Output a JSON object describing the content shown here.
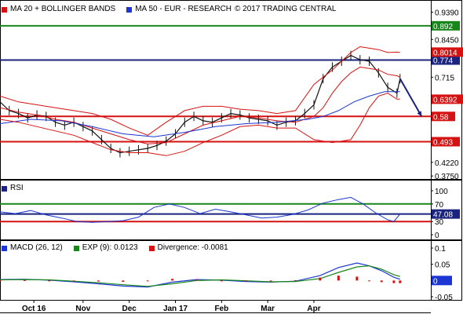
{
  "header": {
    "ma20_label": "MA 20 + BOLLINGER BANDS",
    "ma50_label": "MA 50 - EUR - RESEARCH",
    "copyright": "© 2017 TRADING CENTRAL"
  },
  "rsi_panel": {
    "label": "RSI"
  },
  "macd_panel": {
    "macd_label": "MACD (26, 12)",
    "exp_label": "EXP (9): 0.0123",
    "div_label": "Divergence: -0.0081"
  },
  "colors": {
    "price": "#111111",
    "ma20": "#d61111",
    "ma50": "#1b36d2",
    "bands": "#d61111",
    "level_green": "#18861a",
    "level_blue": "#1a237e",
    "level_red": "#d61111",
    "rsi": "#1b36d2",
    "macd": "#1b36d2",
    "exp": "#18861a",
    "divergence": "#d61111",
    "arrow": "#1a237e"
  },
  "chart_data": [
    {
      "id": "price",
      "type": "line",
      "title": "MA 20 + BOLLINGER BANDS / MA 50 - EUR - RESEARCH",
      "x_tick_labels": [
        "Oct 16",
        "Nov",
        "Dec",
        "Jan 17",
        "Feb",
        "Mar",
        "Apr"
      ],
      "y_ticks": [
        0.939,
        0.845,
        0.715,
        0.422,
        0.375
      ],
      "y_tick_labels": [
        "0.9390",
        "0.8450",
        "0.715",
        "0.4220",
        "0.3750"
      ],
      "ylim": [
        0.37,
        0.97
      ],
      "grid": false,
      "levels": [
        {
          "value": 0.892,
          "label": "0.892",
          "color": "#18861a"
        },
        {
          "value": 0.774,
          "label": "0.774",
          "color": "#1a237e"
        },
        {
          "value": 0.58,
          "label": "0.58",
          "color": "#d61111"
        },
        {
          "value": 0.493,
          "label": "0.493",
          "color": "#d61111"
        }
      ],
      "markers": [
        {
          "value": 0.8014,
          "label": "0.8014",
          "color": "#d61111"
        },
        {
          "value": 0.6392,
          "label": "0.6392",
          "color": "#d61111"
        }
      ],
      "projection": {
        "from_x": 130,
        "from_y": 0.71,
        "to_x": 137,
        "to_y": 0.58
      },
      "series": [
        {
          "name": "Price",
          "x": [
            0,
            3,
            6,
            9,
            12,
            15,
            18,
            21,
            24,
            27,
            30,
            33,
            36,
            39,
            42,
            45,
            48,
            51,
            54,
            57,
            60,
            63,
            66,
            69,
            72,
            75,
            78,
            81,
            84,
            87,
            90,
            93,
            96,
            99,
            102,
            105,
            108,
            111,
            114,
            117,
            120,
            123,
            126,
            129,
            130
          ],
          "values": [
            0.63,
            0.6,
            0.59,
            0.575,
            0.585,
            0.58,
            0.56,
            0.55,
            0.56,
            0.545,
            0.53,
            0.5,
            0.47,
            0.455,
            0.46,
            0.465,
            0.47,
            0.48,
            0.495,
            0.52,
            0.56,
            0.58,
            0.565,
            0.56,
            0.575,
            0.59,
            0.585,
            0.575,
            0.57,
            0.565,
            0.55,
            0.56,
            0.565,
            0.59,
            0.62,
            0.71,
            0.75,
            0.77,
            0.79,
            0.775,
            0.77,
            0.73,
            0.68,
            0.66,
            0.71
          ]
        },
        {
          "name": "MA 20",
          "x": [
            0,
            6,
            12,
            18,
            24,
            30,
            36,
            42,
            48,
            54,
            60,
            66,
            72,
            78,
            84,
            90,
            96,
            102,
            105,
            108,
            111,
            114,
            117,
            120,
            123,
            126,
            129,
            130
          ],
          "values": [
            0.61,
            0.595,
            0.585,
            0.57,
            0.56,
            0.54,
            0.52,
            0.5,
            0.485,
            0.49,
            0.52,
            0.55,
            0.565,
            0.58,
            0.575,
            0.565,
            0.56,
            0.58,
            0.61,
            0.66,
            0.7,
            0.73,
            0.75,
            0.745,
            0.74,
            0.725,
            0.72,
            0.715
          ]
        },
        {
          "name": "MA 50",
          "x": [
            0,
            10,
            20,
            30,
            40,
            50,
            60,
            70,
            80,
            90,
            100,
            105,
            110,
            115,
            120,
            125,
            130
          ],
          "values": [
            0.555,
            0.57,
            0.565,
            0.545,
            0.52,
            0.51,
            0.525,
            0.545,
            0.555,
            0.56,
            0.57,
            0.58,
            0.6,
            0.63,
            0.65,
            0.665,
            0.665
          ]
        },
        {
          "name": "Bollinger Upper",
          "x": [
            0,
            6,
            12,
            18,
            24,
            30,
            36,
            42,
            48,
            54,
            60,
            66,
            72,
            78,
            84,
            90,
            96,
            102,
            108,
            114,
            117,
            120,
            123,
            126,
            129,
            130
          ],
          "values": [
            0.65,
            0.63,
            0.62,
            0.61,
            0.6,
            0.59,
            0.57,
            0.54,
            0.515,
            0.56,
            0.6,
            0.615,
            0.615,
            0.605,
            0.6,
            0.59,
            0.6,
            0.69,
            0.74,
            0.8,
            0.82,
            0.815,
            0.81,
            0.8,
            0.8014,
            0.8
          ]
        },
        {
          "name": "Bollinger Lower",
          "x": [
            0,
            6,
            12,
            18,
            24,
            30,
            36,
            42,
            48,
            54,
            60,
            66,
            72,
            78,
            84,
            90,
            96,
            102,
            108,
            114,
            117,
            120,
            123,
            126,
            129,
            130
          ],
          "values": [
            0.57,
            0.56,
            0.545,
            0.53,
            0.515,
            0.49,
            0.465,
            0.455,
            0.455,
            0.445,
            0.46,
            0.49,
            0.515,
            0.545,
            0.55,
            0.54,
            0.54,
            0.5,
            0.49,
            0.5,
            0.55,
            0.61,
            0.65,
            0.66,
            0.6392,
            0.64
          ]
        }
      ]
    },
    {
      "id": "rsi",
      "type": "line",
      "title": "RSI",
      "y_ticks": [
        100,
        70,
        30,
        0
      ],
      "y_tick_labels": [
        "100",
        "70",
        "30",
        "0"
      ],
      "ylim": [
        0,
        100
      ],
      "levels": [
        {
          "value": 70,
          "color": "#18861a"
        },
        {
          "value": 47.08,
          "label": "47.08",
          "color": "#1a237e"
        },
        {
          "value": 30,
          "color": "#d61111"
        }
      ],
      "series": [
        {
          "name": "RSI",
          "x": [
            0,
            5,
            10,
            15,
            20,
            25,
            30,
            35,
            40,
            45,
            50,
            55,
            60,
            65,
            70,
            75,
            80,
            85,
            90,
            95,
            100,
            105,
            110,
            114,
            118,
            122,
            126,
            128,
            130
          ],
          "values": [
            52,
            48,
            55,
            45,
            38,
            30,
            28,
            30,
            32,
            40,
            62,
            70,
            62,
            48,
            58,
            52,
            45,
            38,
            40,
            46,
            56,
            72,
            80,
            85,
            70,
            50,
            34,
            30,
            47.08
          ]
        }
      ]
    },
    {
      "id": "macd",
      "type": "line",
      "title": "MACD (26, 12)",
      "y_ticks": [
        0.1,
        0.05,
        0,
        -0.05
      ],
      "y_tick_labels": [
        "0.1",
        "0.05",
        "0",
        "-0.05"
      ],
      "ylim": [
        -0.05,
        0.1
      ],
      "levels": [
        {
          "value": 0,
          "label": "0",
          "color": "#1b36d2"
        }
      ],
      "series": [
        {
          "name": "MACD (26, 12)",
          "x": [
            0,
            8,
            16,
            24,
            32,
            40,
            48,
            56,
            64,
            72,
            80,
            88,
            96,
            104,
            110,
            116,
            120,
            124,
            128,
            130
          ],
          "values": [
            0.003,
            0.004,
            0.001,
            -0.004,
            -0.01,
            -0.017,
            -0.02,
            -0.005,
            0.003,
            0.001,
            -0.003,
            -0.005,
            -0.002,
            0.015,
            0.04,
            0.054,
            0.045,
            0.03,
            0.01,
            0.004
          ]
        },
        {
          "name": "EXP (9)",
          "x": [
            0,
            8,
            16,
            24,
            32,
            40,
            48,
            56,
            64,
            72,
            80,
            88,
            96,
            104,
            110,
            116,
            120,
            124,
            128,
            130
          ],
          "values": [
            0.002,
            0.003,
            0.002,
            -0.002,
            -0.007,
            -0.013,
            -0.018,
            -0.01,
            0.0,
            0.002,
            -0.001,
            -0.004,
            -0.003,
            0.006,
            0.025,
            0.042,
            0.045,
            0.035,
            0.018,
            0.0123
          ]
        },
        {
          "name": "Divergence",
          "x": [
            0,
            8,
            16,
            24,
            32,
            40,
            48,
            56,
            64,
            72,
            80,
            88,
            96,
            104,
            110,
            116,
            120,
            124,
            128,
            130
          ],
          "values": [
            0.001,
            0.001,
            -0.001,
            -0.002,
            -0.003,
            -0.004,
            -0.002,
            0.005,
            0.003,
            -0.001,
            -0.002,
            -0.001,
            0.001,
            0.009,
            0.015,
            0.012,
            0.0,
            -0.005,
            -0.008,
            -0.0081
          ]
        }
      ]
    }
  ]
}
